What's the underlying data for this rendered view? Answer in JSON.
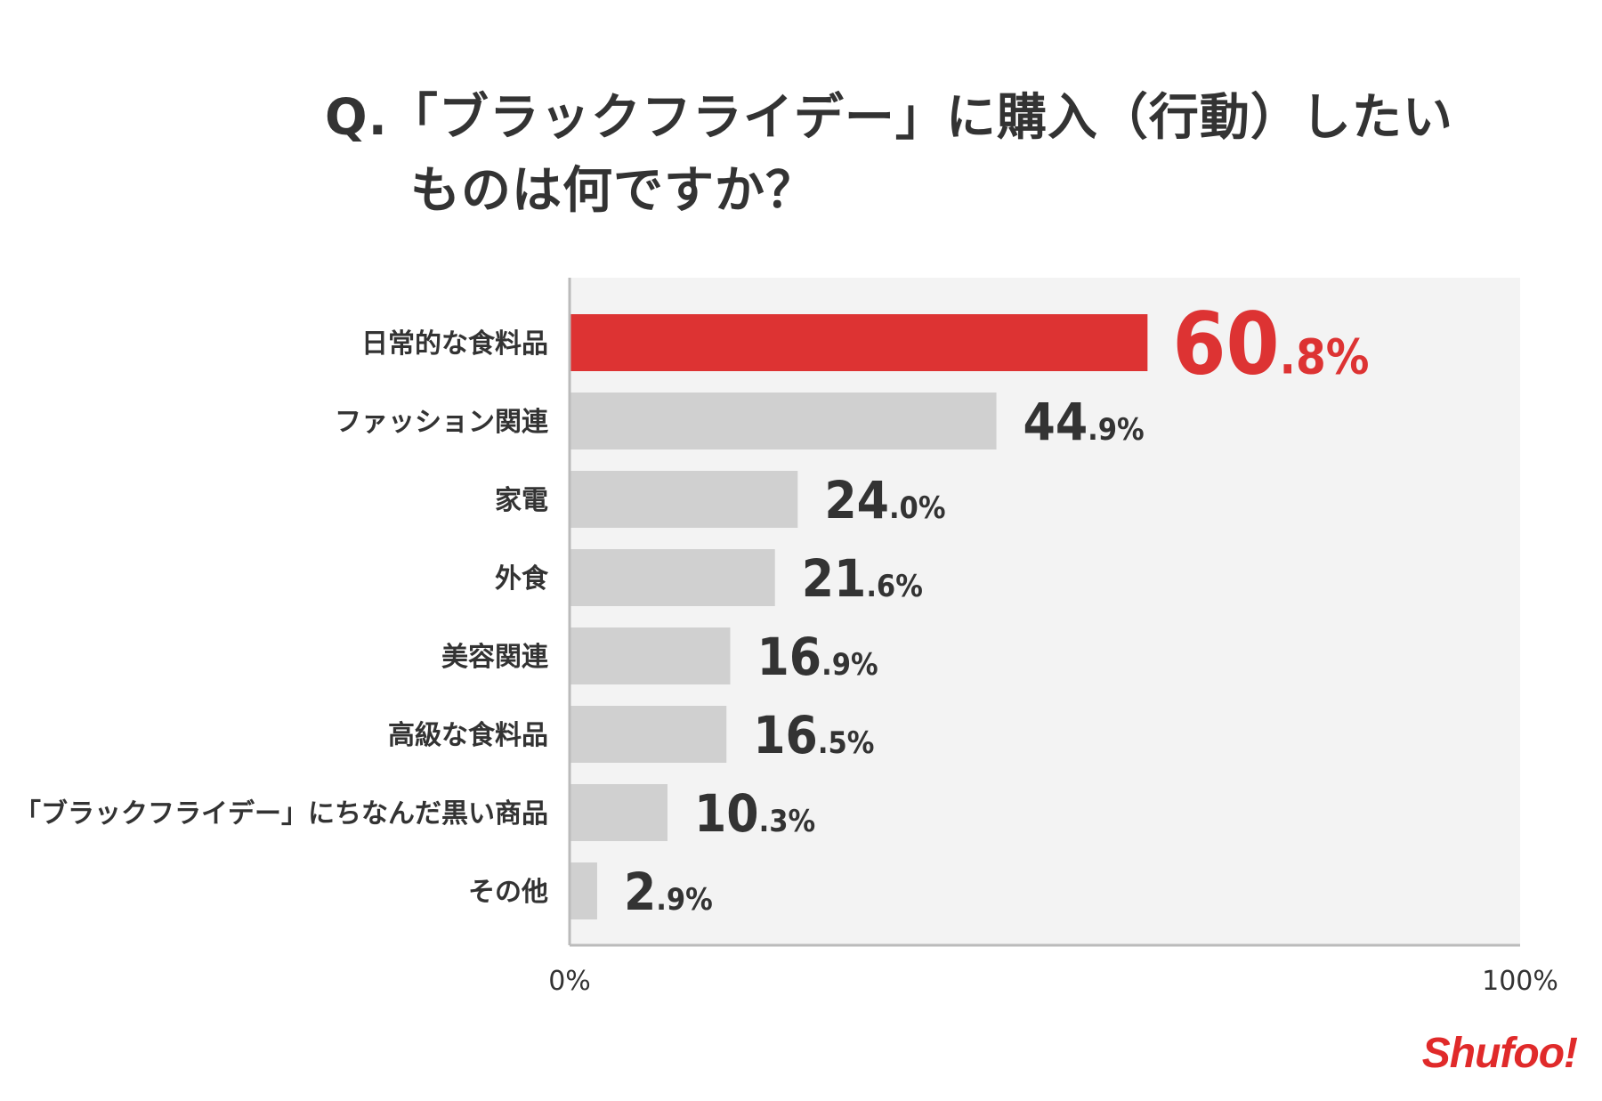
{
  "title": {
    "line1": "Q.「ブラックフライデー」に購入（行動）したい",
    "line2": "ものは何ですか？"
  },
  "logo": {
    "text": "Shufoo!",
    "color": "#e02a2a"
  },
  "chart_data": {
    "type": "bar",
    "orientation": "horizontal",
    "categories": [
      "日常的な食料品",
      "ファッション関連",
      "家電",
      "外食",
      "美容関連",
      "高級な食料品",
      "「ブラックフライデー」にちなんだ黒い商品",
      "その他"
    ],
    "values": [
      60.8,
      44.9,
      24.0,
      21.6,
      16.9,
      16.5,
      10.3,
      2.9
    ],
    "value_labels": [
      "60.8%",
      "44.9%",
      "24.0%",
      "21.6%",
      "16.9%",
      "16.5%",
      "10.3%",
      "2.9%"
    ],
    "xlim": [
      0,
      100
    ],
    "x_tick_labels": [
      "0%",
      "100%"
    ],
    "highlight_index": 0,
    "grid": false,
    "colors": {
      "highlight": "#dd3333",
      "bar": "#d0d0d0",
      "plot_bg": "#f3f3f3",
      "axis": "#bbbbbb",
      "label": "#333333"
    }
  }
}
